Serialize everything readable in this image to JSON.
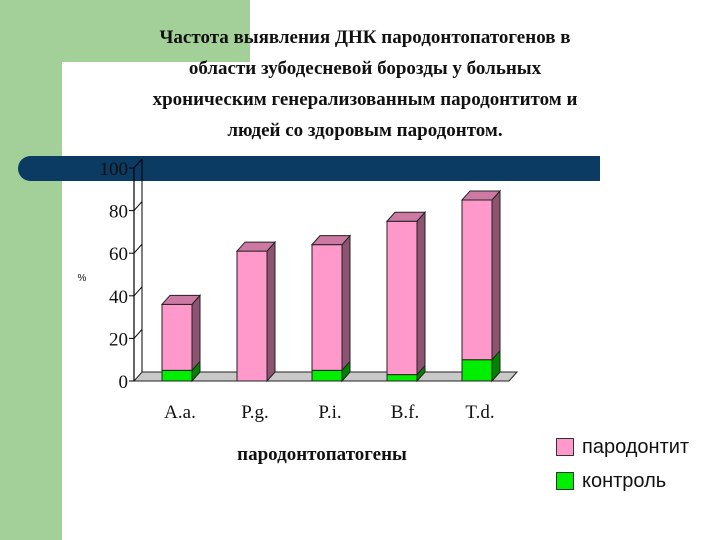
{
  "colors": {
    "frame_green": "#a3cf98",
    "band_navy": "#0b3a63"
  },
  "title_lines": [
    "Частота выявления ДНК пародонтопатогенов в",
    "области зубодесневой борозды у больных",
    "хроническим генерализованным пародонтитом и",
    "людей со здоровым пародонтом."
  ],
  "chart_data": {
    "type": "bar",
    "stacked": true,
    "categories": [
      "A.a.",
      "P.g.",
      "P.i.",
      "B.f.",
      "T.d."
    ],
    "series": [
      {
        "name": "контроль",
        "color": "#00ee00",
        "values": [
          5,
          0,
          5,
          3,
          10
        ]
      },
      {
        "name": "пародонтит",
        "color": "#ff99cc",
        "values": [
          31,
          61,
          59,
          72,
          75
        ]
      }
    ],
    "xlabel": "пародонтопатогены",
    "ylabel": "%",
    "ylim": [
      0,
      100
    ],
    "yticks": [
      0,
      20,
      40,
      60,
      80,
      100
    ],
    "legend_position": "bottom-right"
  },
  "legend": [
    {
      "label": "пародонтит",
      "color": "#ff99cc"
    },
    {
      "label": "контроль",
      "color": "#00ee00"
    }
  ]
}
